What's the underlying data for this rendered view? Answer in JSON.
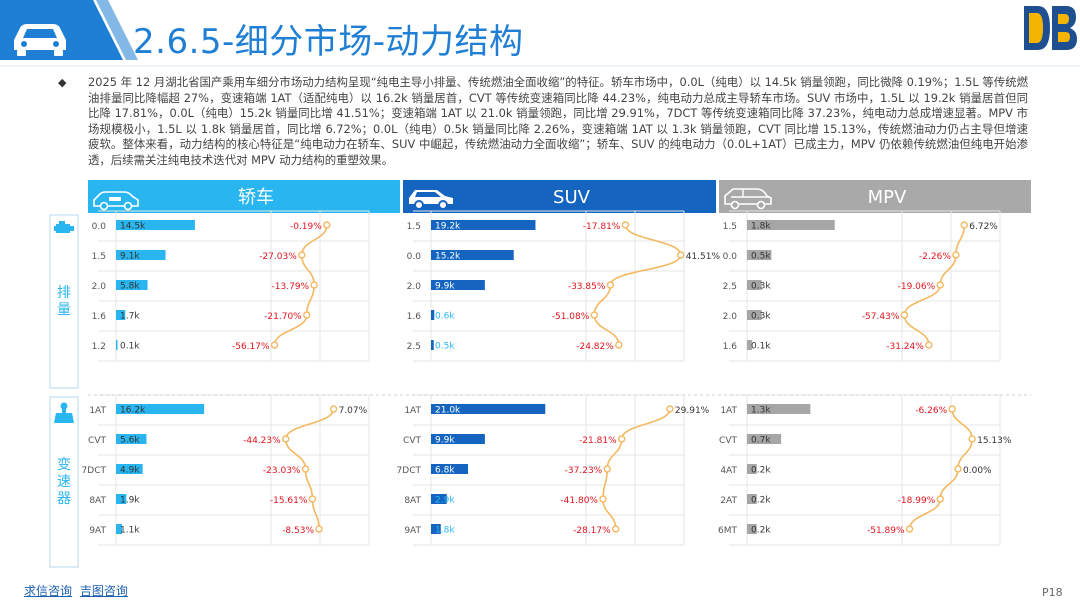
{
  "slide": {
    "title": "2.6.5-细分市场-动力结构",
    "bullet": "◆",
    "summary": "2025 年 12 月湖北省国产乘用车细分市场动力结构呈现“纯电主导小排量、传统燃油全面收缩”的特征。轿车市场中，0.0L（纯电）以 14.5k 销量领跑，同比微降 0.19%；1.5L 等传统燃油排量同比降幅超 27%，变速箱端 1AT（适配纯电）以 16.2k 销量居首，CVT 等传统变速箱同比降 44.23%，纯电动力总成主导轿车市场。SUV 市场中，1.5L 以 19.2k 销量居首但同比降 17.81%，0.0L（纯电）15.2k 销量同比增 41.51%；变速箱端 1AT 以 21.0k 销量领跑，同比增 29.91%，7DCT 等传统变速箱同比降 37.23%，纯电动力总成增速显著。MPV 市场规模极小，1.5L 以 1.8k 销量居首，同比增 6.72%；0.0L（纯电）0.5k 销量同比降 2.26%，变速箱端 1AT 以 1.3k 销量领跑，CVT 同比增 15.13%，传统燃油动力仍占主导但增速疲软。整体来看，动力结构的核心特征是“纯电动力在轿车、SUV 中崛起，传统燃油动力全面收缩”；轿车、SUV 的纯电动力（0.0L+1AT）已成主力，MPV 仍依赖传统燃油但纯电开始渗透，后续需关注纯电技术迭代对 MPV 动力结构的重塑效果。",
    "footer_links": [
      "求信咨询",
      "吉图咨询"
    ],
    "page": "P18",
    "logo_text": "DB"
  },
  "colors": {
    "title_blue": "#1f7fd4",
    "sedan_header": "#29b6f0",
    "suv_header": "#1565c0",
    "mpv_header": "#a9a9a9",
    "sedan_bar": "#29b6f0",
    "suv_bar": "#1565c0",
    "mpv_bar": "#a6a6a6",
    "line": "#f4b860",
    "negative": "#e0141e",
    "positive": "#333333",
    "side_label": "#29b6f0"
  },
  "row_groups": [
    {
      "id": "displacement",
      "label": "排量"
    },
    {
      "id": "transmission",
      "label": "变速器"
    }
  ],
  "chart_data": [
    {
      "type": "bar",
      "segment": "轿车",
      "group": "排量",
      "categories": [
        "0.0",
        "1.5",
        "2.0",
        "1.6",
        "1.2"
      ],
      "values": [
        14.5,
        9.1,
        5.8,
        1.7,
        0.1
      ],
      "value_labels": [
        "14.5k",
        "9.1k",
        "5.8k",
        "1.7k",
        "0.1k"
      ],
      "yoy": [
        -0.19,
        -27.03,
        -13.79,
        -21.7,
        -56.17
      ],
      "yoy_labels": [
        "-0.19%",
        "-27.03%",
        "-13.79%",
        "-21.70%",
        "-56.17%"
      ]
    },
    {
      "type": "bar",
      "segment": "SUV",
      "group": "排量",
      "categories": [
        "1.5",
        "0.0",
        "2.0",
        "1.6",
        "2.5"
      ],
      "values": [
        19.2,
        15.2,
        9.9,
        0.6,
        0.5
      ],
      "value_labels": [
        "19.2k",
        "15.2k",
        "9.9k",
        "0.6k",
        "0.5k"
      ],
      "yoy": [
        -17.81,
        41.51,
        -33.85,
        -51.08,
        -24.82
      ],
      "yoy_labels": [
        "-17.81%",
        "41.51%",
        "-33.85%",
        "-51.08%",
        "-24.82%"
      ]
    },
    {
      "type": "bar",
      "segment": "MPV",
      "group": "排量",
      "categories": [
        "1.5",
        "0.0",
        "2.5",
        "2.0",
        "1.6"
      ],
      "values": [
        1.8,
        0.5,
        0.3,
        0.3,
        0.1
      ],
      "value_labels": [
        "1.8k",
        "0.5k",
        "0.3k",
        "0.3k",
        "0.1k"
      ],
      "yoy": [
        6.72,
        -2.26,
        -19.06,
        -57.43,
        -31.24
      ],
      "yoy_labels": [
        "6.72%",
        "-2.26%",
        "-19.06%",
        "-57.43%",
        "-31.24%"
      ]
    },
    {
      "type": "bar",
      "segment": "轿车",
      "group": "变速器",
      "categories": [
        "1AT",
        "CVT",
        "7DCT",
        "8AT",
        "9AT"
      ],
      "values": [
        16.2,
        5.6,
        4.9,
        1.9,
        1.1
      ],
      "value_labels": [
        "16.2k",
        "5.6k",
        "4.9k",
        "1.9k",
        "1.1k"
      ],
      "yoy": [
        7.07,
        -44.23,
        -23.03,
        -15.61,
        -8.53
      ],
      "yoy_labels": [
        "7.07%",
        "-44.23%",
        "-23.03%",
        "-15.61%",
        "-8.53%"
      ]
    },
    {
      "type": "bar",
      "segment": "SUV",
      "group": "变速器",
      "categories": [
        "1AT",
        "CVT",
        "7DCT",
        "8AT",
        "9AT"
      ],
      "values": [
        21.0,
        9.9,
        6.8,
        2.9,
        1.8
      ],
      "value_labels": [
        "21.0k",
        "9.9k",
        "6.8k",
        "2.9k",
        "1.8k"
      ],
      "yoy": [
        29.91,
        -21.81,
        -37.23,
        -41.8,
        -28.17
      ],
      "yoy_labels": [
        "29.91%",
        "-21.81%",
        "-37.23%",
        "-41.80%",
        "-28.17%"
      ]
    },
    {
      "type": "bar",
      "segment": "MPV",
      "group": "变速器",
      "categories": [
        "1AT",
        "CVT",
        "4AT",
        "2AT",
        "6MT"
      ],
      "values": [
        1.3,
        0.7,
        0.2,
        0.2,
        0.2
      ],
      "value_labels": [
        "1.3k",
        "0.7k",
        "0.2k",
        "0.2k",
        "0.2k"
      ],
      "yoy": [
        -6.26,
        15.13,
        0.0,
        -18.99,
        -51.89
      ],
      "yoy_labels": [
        "-6.26%",
        "15.13%",
        "0.00%",
        "-18.99%",
        "-51.89%"
      ]
    }
  ],
  "segments": [
    {
      "name": "轿车",
      "icon": "sedan-icon"
    },
    {
      "name": "SUV",
      "icon": "suv-icon"
    },
    {
      "name": "MPV",
      "icon": "mpv-icon"
    }
  ]
}
